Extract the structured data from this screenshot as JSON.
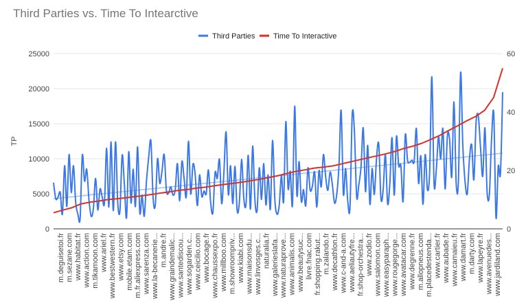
{
  "chart_data": {
    "type": "line",
    "title": "Third Parties vs. Time To Intearctive",
    "ylabel": "TP",
    "y2label": "",
    "ylim": [
      0,
      25000
    ],
    "y_ticks": [
      "0",
      "5000",
      "10000",
      "15000",
      "20000",
      "25000"
    ],
    "y2lim": [
      0,
      60
    ],
    "y2_ticks": [
      "0",
      "20",
      "40",
      "60"
    ],
    "legend_position": "top",
    "grid": true,
    "colors": {
      "third_parties": "#3b78e7",
      "tti": "#d93025",
      "trend": "#9fc0f3",
      "grid": "#e6e6e6"
    },
    "x_tick_labels": [
      "m.deguisetoi.fr",
      "m.sezane.com",
      "www.habitat.fr",
      "www.action.com",
      "m.tikamoon.com",
      "www.ariel.fr",
      "www.bestwestern.fr",
      "www.etsy.com",
      "mobile.etam.com",
      "m.fr.aliexpress.com",
      "www.sarenza.com",
      "www.la-becanerie...",
      "m.andre.fr",
      "www.graindemalic...",
      "www.santediscou...",
      "www.sogarden.c...",
      "www.ceicilio.com",
      "www.bocage.fr",
      "www.chaussexpo.fr",
      "www.millboo.com",
      "m.showroompriv...",
      "www.kiabi.com",
      "www.maisonsdu...",
      "www.linvosges.c...",
      "naturalia.fr",
      "www.galerieslafa...",
      "www.naturaprove...",
      "www.animalis.com",
      "www.beautysuc...",
      "livre.fnac.com",
      "fr.shopping.rakut...",
      "m.zalando.fr",
      "www.decathlon.fr",
      "www.c-and-a.com",
      "www.aeliautyfre...",
      "fr.shop-orchestra...",
      "www.zodio.fr",
      "www.salomon.com",
      "www.easyparaph...",
      "www.rougegorge...",
      "www.avatacar.com",
      "www.degrenne.fr",
      "m.allopneus.com",
      "m.placedestenda...",
      "www.cartier.fr",
      "www.aubade.fr",
      "www.camaieu.fr",
      "www.damart.fr",
      "m.darty.com",
      "www.lapeyre.fr",
      "www.avenuedes...",
      "www.jardiland.com"
    ],
    "series": [
      {
        "name": "Third Parties",
        "axis": "left",
        "values": [
          6600,
          4300,
          4500,
          5200,
          2100,
          9000,
          3200,
          10600,
          5200,
          9000,
          3800,
          2100,
          1500,
          10500,
          6800,
          8500,
          4200,
          1800,
          2900,
          7200,
          2700,
          5700,
          4500,
          3700,
          11500,
          3100,
          12400,
          2600,
          12400,
          3800,
          2600,
          10500,
          6400,
          1600,
          11000,
          3700,
          8500,
          3200,
          11700,
          2300,
          4800,
          1800,
          6800,
          10200,
          12500,
          4400,
          3400,
          10000,
          6500,
          8200,
          10600,
          5500,
          5100,
          6000,
          4800,
          5600,
          9300,
          4000,
          9600,
          7200,
          4600,
          12500,
          5000,
          9200,
          7800,
          3300,
          7700,
          4600,
          5400,
          5000,
          8400,
          3800,
          2300,
          8000,
          7200,
          9900,
          3600,
          8100,
          13800,
          4900,
          9000,
          3600,
          8900,
          2600,
          3800,
          9900,
          4300,
          3500,
          10500,
          2800,
          11800,
          4200,
          2600,
          8700,
          4200,
          9300,
          3400,
          7700,
          2800,
          12600,
          4300,
          2100,
          3300,
          7600,
          3900,
          15300,
          5800,
          8200,
          3400,
          17500,
          4800,
          9600,
          3900,
          5600,
          3300,
          8700,
          5500,
          6100,
          8100,
          3100,
          8300,
          6000,
          10600,
          7400,
          5500,
          8100,
          6400,
          3700,
          4900,
          8900,
          16900,
          5000,
          8600,
          3900,
          3100,
          16300,
          14000,
          4600,
          6300,
          8900,
          14400,
          5300,
          11900,
          3500,
          8600,
          4900,
          10100,
          12100,
          4300,
          5600,
          10600,
          3600,
          6400,
          13000,
          4800,
          13200,
          9000,
          9000,
          3900,
          13400,
          9800,
          9500,
          9800,
          9600,
          14300,
          6500,
          10400,
          3500,
          10600,
          5600,
          8100,
          21700,
          6500,
          8300,
          13200,
          10000,
          14300,
          5700,
          13200,
          12800,
          7400,
          18100,
          6500,
          6800,
          22300,
          11900,
          6800,
          5000,
          10000,
          12000,
          7000,
          15200,
          16100,
          11600,
          7500,
          14400,
          5200,
          4900,
          12900,
          16400,
          1600,
          8900,
          7900,
          19500
        ]
      },
      {
        "name": "Time To Interactive",
        "axis": "right",
        "values": [
          5.5,
          6.4,
          7.2,
          8.5,
          9.1,
          9.5,
          10.0,
          10.3,
          10.6,
          11.0,
          11.4,
          11.8,
          12.3,
          12.7,
          13.2,
          13.5,
          14.0,
          14.3,
          14.8,
          15.2,
          15.6,
          16.0,
          16.5,
          17.0,
          17.6,
          18.2,
          19.0,
          19.7,
          20.2,
          20.8,
          21.1,
          21.5,
          22.2,
          22.9,
          23.6,
          24.3,
          25.0,
          25.7,
          26.5,
          27.5,
          28.3,
          29.3,
          30.6,
          32.0,
          33.7,
          35.3,
          37.0,
          38.5,
          40.6,
          45.0,
          55.0
        ]
      }
    ],
    "trend": {
      "series": "Third Parties",
      "start": 4300,
      "end": 10800
    }
  }
}
